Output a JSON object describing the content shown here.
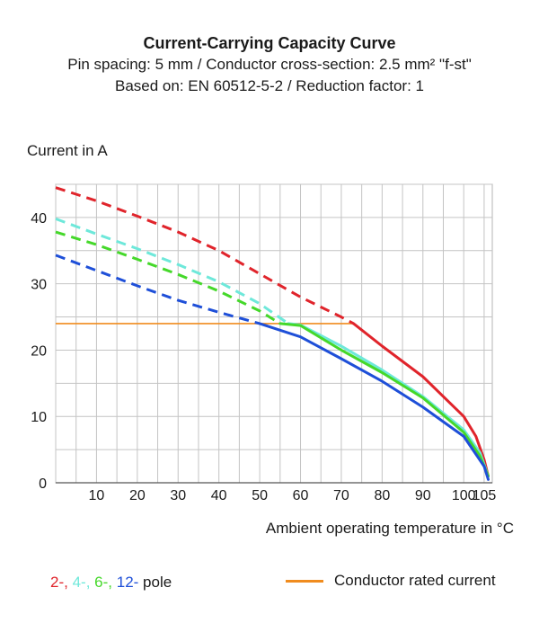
{
  "chart_data": {
    "type": "line",
    "title": "Current-Carrying Capacity Curve",
    "subtitle1": "Pin spacing: 5 mm / Conductor cross-section: 2.5 mm² \"f-st\"",
    "subtitle2": "Based on: EN 60512-5-2 / Reduction factor: 1",
    "ylabel": "Current in A",
    "xlabel": "Ambient operating temperature in °C",
    "xlim": [
      0,
      107
    ],
    "ylim": [
      0,
      45
    ],
    "xticks": [
      "10",
      "20",
      "30",
      "40",
      "50",
      "60",
      "70",
      "80",
      "90",
      "100",
      "105"
    ],
    "yticks": [
      "0",
      "10",
      "20",
      "30",
      "40"
    ],
    "grid": true,
    "series": [
      {
        "name": "2-",
        "color": "#e0242b",
        "dashed": {
          "x": [
            0,
            10,
            20,
            30,
            40,
            50,
            60,
            70,
            73
          ],
          "y": [
            44.5,
            42.5,
            40.2,
            37.8,
            35,
            31.5,
            28,
            25,
            24
          ]
        },
        "solid": {
          "x": [
            73,
            80,
            90,
            100,
            103,
            105,
            106
          ],
          "y": [
            24,
            20.6,
            16,
            10,
            7,
            3.5,
            1
          ]
        }
      },
      {
        "name": "4-",
        "color": "#6ee8da",
        "dashed": {
          "x": [
            0,
            10,
            20,
            30,
            40,
            50,
            57
          ],
          "y": [
            39.8,
            37.5,
            35.3,
            32.9,
            30.3,
            27,
            24
          ]
        },
        "solid": {
          "x": [
            57,
            60,
            70,
            80,
            90,
            100,
            104,
            106
          ],
          "y": [
            24,
            23.8,
            20.6,
            17,
            13,
            8,
            4.5,
            1
          ]
        }
      },
      {
        "name": "6-",
        "color": "#45d82a",
        "dashed": {
          "x": [
            0,
            10,
            20,
            30,
            40,
            50,
            55
          ],
          "y": [
            37.8,
            35.9,
            33.7,
            31.4,
            28.9,
            25.9,
            24
          ]
        },
        "solid": {
          "x": [
            55,
            60,
            70,
            80,
            90,
            100,
            104,
            106
          ],
          "y": [
            24,
            23.7,
            20,
            16.6,
            12.8,
            7.6,
            4,
            1
          ]
        }
      },
      {
        "name": "12-",
        "color": "#1e4fd8",
        "dashed": {
          "x": [
            0,
            10,
            20,
            30,
            40,
            50
          ],
          "y": [
            34.3,
            32,
            29.7,
            27.5,
            25.7,
            24
          ]
        },
        "solid": {
          "x": [
            50,
            60,
            70,
            80,
            90,
            100,
            105,
            106
          ],
          "y": [
            24,
            22,
            18.7,
            15.3,
            11.4,
            7,
            2.5,
            0.5
          ]
        }
      }
    ],
    "rated_current": {
      "name": "Conductor rated current",
      "color": "#f08c1e",
      "value": 24,
      "x_end": 73
    }
  },
  "legend": {
    "pole_2": "2-,",
    "pole_4": "4-,",
    "pole_6": "6-,",
    "pole_12": "12-",
    "pole_suffix": "pole",
    "rated_label": "Conductor rated current"
  }
}
